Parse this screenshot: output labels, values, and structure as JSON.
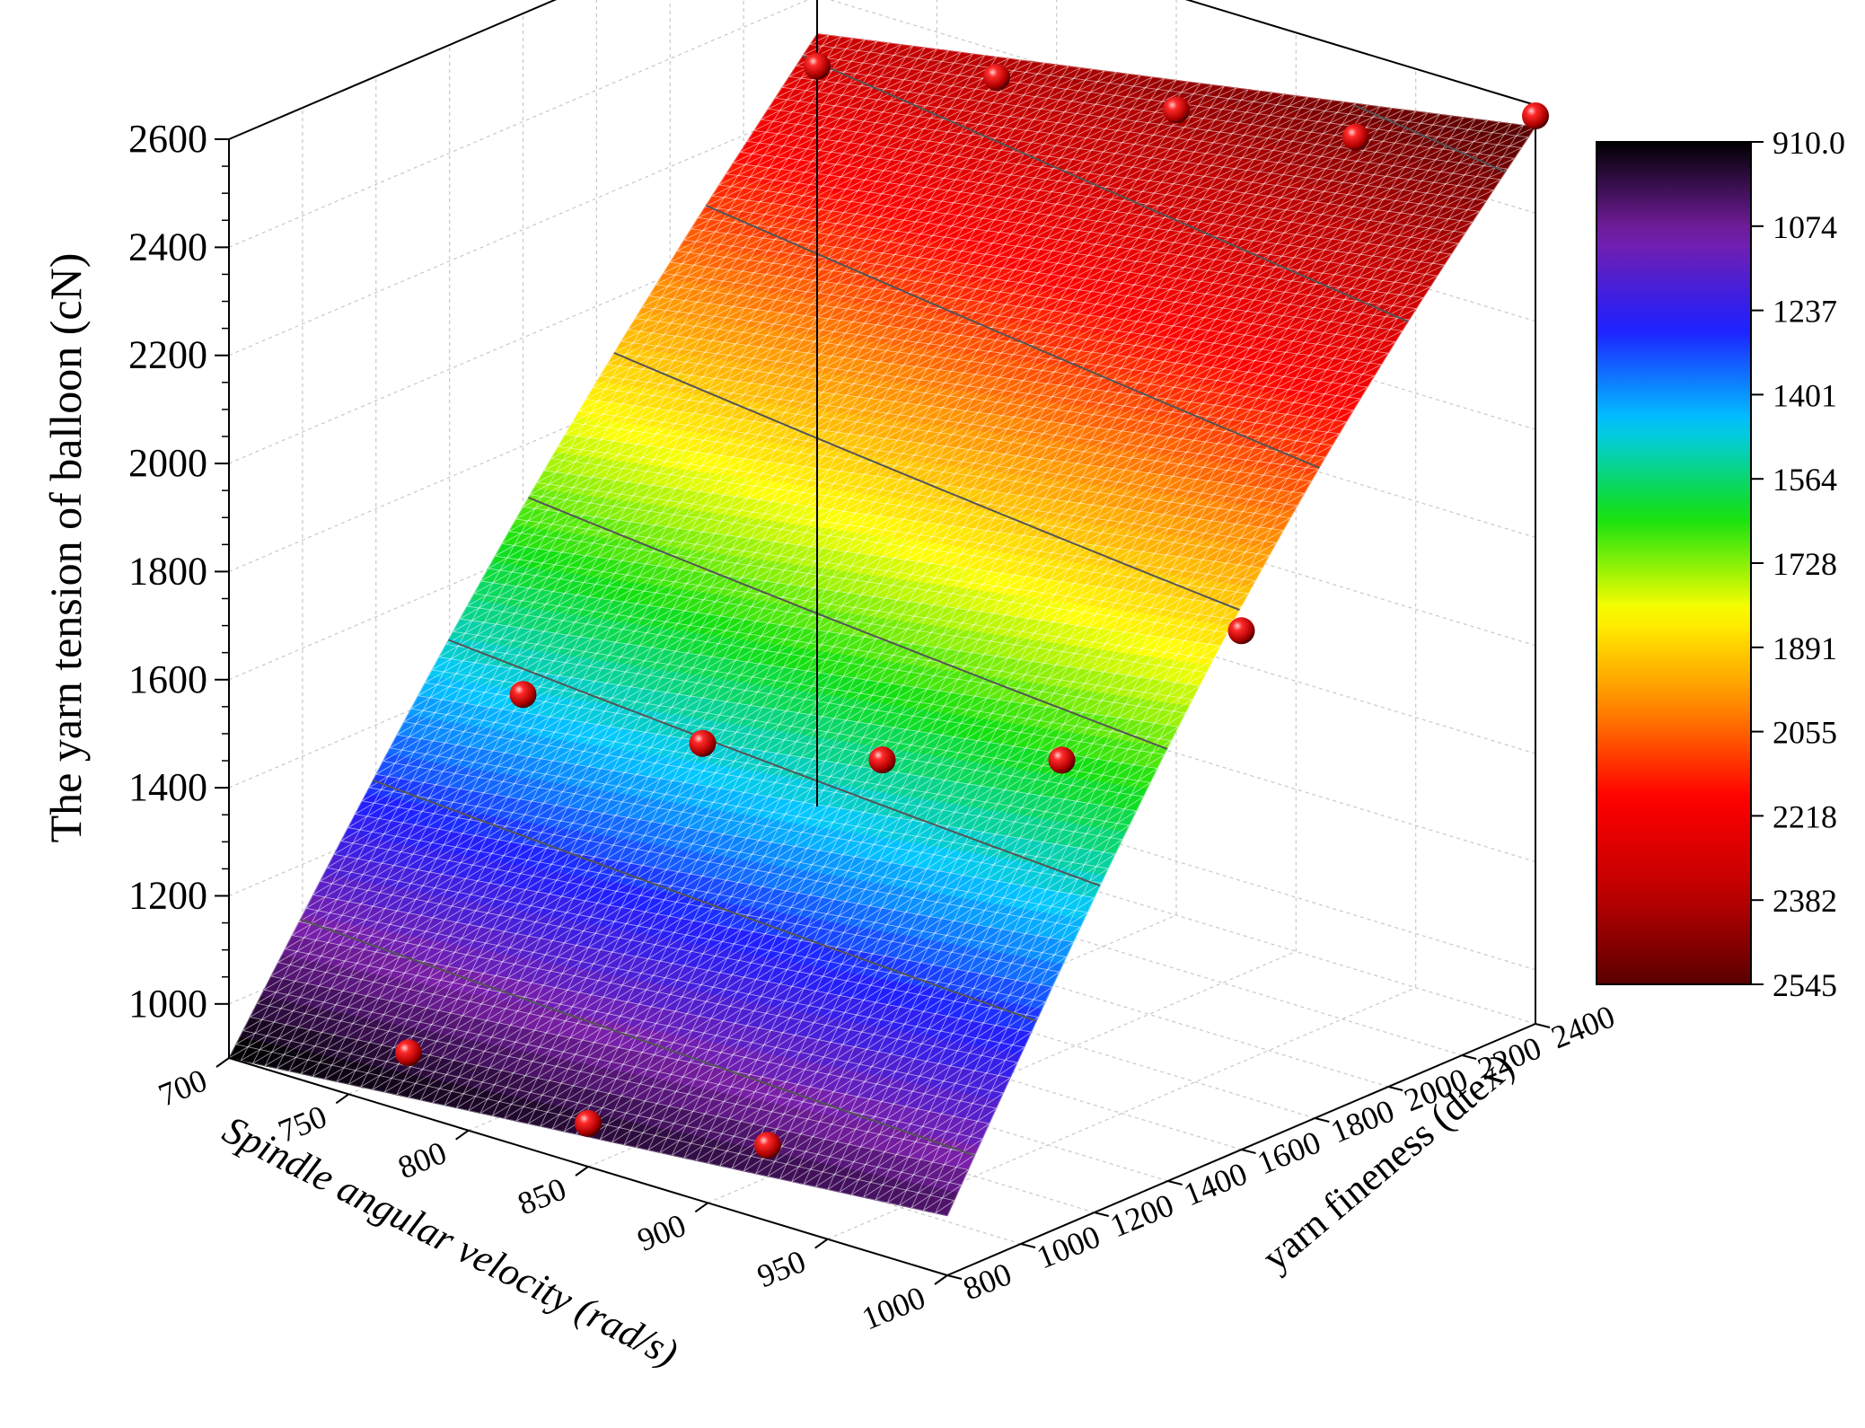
{
  "chart_data": {
    "type": "surface3d",
    "zlabel": "The yarn tension of balloon (cN)",
    "xlabel": "Spindle angular velocity (rad/s)",
    "ylabel": "yarn fineness (dtex)",
    "x_ticks": [
      "700",
      "750",
      "800",
      "850",
      "900",
      "950",
      "1000"
    ],
    "y_ticks": [
      "800",
      "1000",
      "1200",
      "1400",
      "1600",
      "1800",
      "2000",
      "2200",
      "2400"
    ],
    "z_ticks": [
      "1000",
      "1200",
      "1400",
      "1600",
      "1800",
      "2000",
      "2200",
      "2400",
      "2600"
    ],
    "xlim": [
      700,
      1000
    ],
    "ylim": [
      800,
      2400
    ],
    "zlim": [
      900,
      2600
    ],
    "grid": true,
    "surface_range": {
      "x": [
        700,
        1000
      ],
      "y": [
        800,
        2400
      ]
    },
    "surface_corners_z": {
      "x700_y800": 900,
      "x1000_y800": 1010,
      "x700_y2400": 2330,
      "x1000_y2400": 2560
    },
    "contour_levels": [
      1100,
      1300,
      1500,
      1700,
      1900,
      2100,
      2300,
      2500
    ],
    "points": [
      {
        "x": 775,
        "y": 800,
        "z": 1010
      },
      {
        "x": 850,
        "y": 800,
        "z": 980
      },
      {
        "x": 925,
        "y": 800,
        "z": 1040
      },
      {
        "x": 700,
        "y": 1600,
        "z": 1340
      },
      {
        "x": 775,
        "y": 1600,
        "z": 1350
      },
      {
        "x": 850,
        "y": 1600,
        "z": 1420
      },
      {
        "x": 925,
        "y": 1600,
        "z": 1520
      },
      {
        "x": 1000,
        "y": 1600,
        "z": 1860
      },
      {
        "x": 700,
        "y": 2400,
        "z": 2270
      },
      {
        "x": 775,
        "y": 2400,
        "z": 2350
      },
      {
        "x": 850,
        "y": 2400,
        "z": 2390
      },
      {
        "x": 925,
        "y": 2400,
        "z": 2440
      },
      {
        "x": 1000,
        "y": 2400,
        "z": 2580
      }
    ],
    "colorbar": {
      "labels": [
        "910.0",
        "1074",
        "1237",
        "1401",
        "1564",
        "1728",
        "1891",
        "2055",
        "2218",
        "2382",
        "2545"
      ],
      "min": 910.0,
      "max": 2545,
      "colors": [
        "#000000",
        "#7a1fa8",
        "#1f1fff",
        "#00c8ff",
        "#10e010",
        "#ffff00",
        "#ff8a00",
        "#ff0000",
        "#c00000",
        "#5a0000"
      ]
    }
  }
}
